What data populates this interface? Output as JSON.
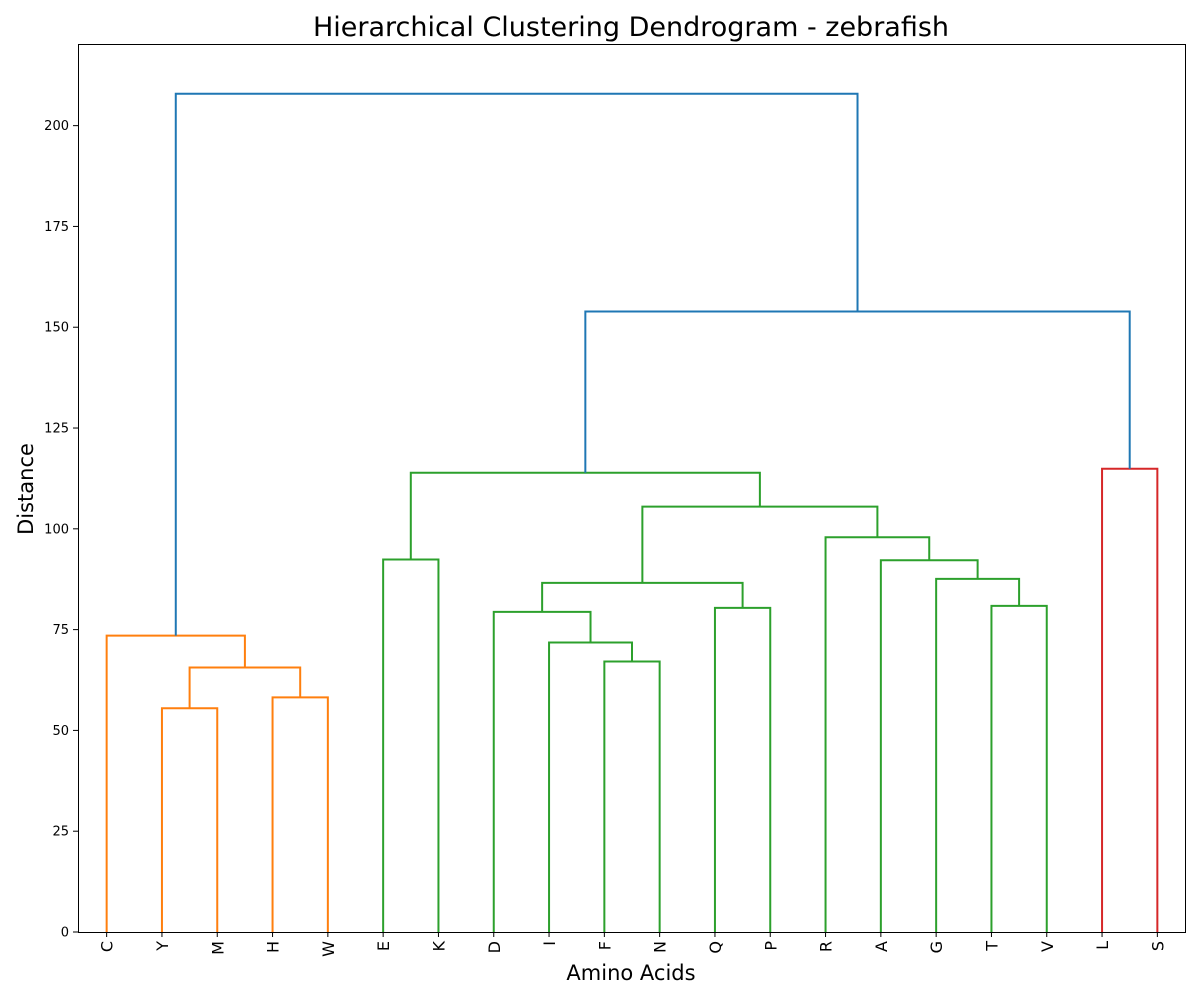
{
  "chart_data": {
    "type": "dendrogram",
    "title": "Hierarchical Clustering Dendrogram - zebrafish",
    "xlabel": "Amino Acids",
    "ylabel": "Distance",
    "ylim": [
      0,
      220
    ],
    "yticks": [
      0,
      25,
      50,
      75,
      100,
      125,
      150,
      175,
      200
    ],
    "grid": false,
    "leaves": [
      "C",
      "Y",
      "M",
      "H",
      "W",
      "E",
      "K",
      "D",
      "I",
      "F",
      "N",
      "Q",
      "P",
      "R",
      "A",
      "G",
      "T",
      "V",
      "L",
      "S"
    ],
    "colors": {
      "orange": "#ff7f0e",
      "green": "#2ca02c",
      "red": "#d62728",
      "blue": "#1f77b4"
    },
    "merges": [
      {
        "left": "leaf:Y",
        "right": "leaf:M",
        "height": 55.5,
        "color": "orange"
      },
      {
        "left": "leaf:H",
        "right": "leaf:W",
        "height": 58.2,
        "color": "orange"
      },
      {
        "left": "node:0",
        "right": "node:1",
        "height": 65.6,
        "color": "orange"
      },
      {
        "left": "leaf:C",
        "right": "node:2",
        "height": 73.5,
        "color": "orange"
      },
      {
        "left": "leaf:F",
        "right": "leaf:N",
        "height": 67.1,
        "color": "green"
      },
      {
        "left": "leaf:I",
        "right": "node:4",
        "height": 71.8,
        "color": "green"
      },
      {
        "left": "leaf:D",
        "right": "node:5",
        "height": 79.4,
        "color": "green"
      },
      {
        "left": "leaf:Q",
        "right": "leaf:P",
        "height": 80.4,
        "color": "green"
      },
      {
        "left": "node:6",
        "right": "node:7",
        "height": 86.6,
        "color": "green"
      },
      {
        "left": "leaf:T",
        "right": "leaf:V",
        "height": 80.9,
        "color": "green"
      },
      {
        "left": "leaf:G",
        "right": "node:9",
        "height": 87.6,
        "color": "green"
      },
      {
        "left": "leaf:A",
        "right": "node:10",
        "height": 92.2,
        "color": "green"
      },
      {
        "left": "leaf:R",
        "right": "node:11",
        "height": 97.9,
        "color": "green"
      },
      {
        "left": "node:8",
        "right": "node:12",
        "height": 105.5,
        "color": "green"
      },
      {
        "left": "leaf:E",
        "right": "leaf:K",
        "height": 92.4,
        "color": "green"
      },
      {
        "left": "node:14",
        "right": "node:13",
        "height": 113.9,
        "color": "green"
      },
      {
        "left": "leaf:L",
        "right": "leaf:S",
        "height": 114.9,
        "color": "red"
      },
      {
        "left": "node:15",
        "right": "node:16",
        "height": 153.9,
        "color": "blue"
      },
      {
        "left": "node:3",
        "right": "node:17",
        "height": 207.9,
        "color": "blue"
      }
    ]
  }
}
